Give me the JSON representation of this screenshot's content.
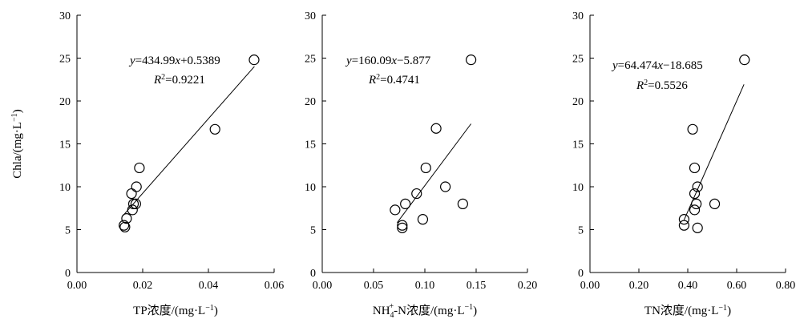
{
  "chart_data": [
    {
      "type": "scatter",
      "xlabel": "TP浓度/(mg·L⁻¹)",
      "ylabel": "Chla/(mg·L⁻¹)",
      "xlim": [
        0,
        0.06
      ],
      "ylim": [
        0,
        30
      ],
      "xticks": [
        "0.00",
        "0.02",
        "0.04",
        "0.06"
      ],
      "yticks": [
        "0",
        "5",
        "10",
        "15",
        "20",
        "25",
        "30"
      ],
      "points": [
        {
          "x": 0.0143,
          "y": 5.5
        },
        {
          "x": 0.0146,
          "y": 5.3
        },
        {
          "x": 0.0151,
          "y": 6.3
        },
        {
          "x": 0.0169,
          "y": 7.3
        },
        {
          "x": 0.0172,
          "y": 8.0
        },
        {
          "x": 0.0179,
          "y": 8.0
        },
        {
          "x": 0.0166,
          "y": 9.2
        },
        {
          "x": 0.0181,
          "y": 10.0
        },
        {
          "x": 0.019,
          "y": 12.2
        },
        {
          "x": 0.042,
          "y": 16.7
        },
        {
          "x": 0.0539,
          "y": 24.8
        }
      ],
      "fit": {
        "slope": 434.99,
        "intercept": 0.5389,
        "x_range": [
          0.014,
          0.054
        ]
      },
      "equation": "y=434.99x+0.5389",
      "r2": "R2=0.9221"
    },
    {
      "type": "scatter",
      "xlabel": "NH4+-N浓度/(mg·L⁻¹)",
      "ylabel": "",
      "xlim": [
        0,
        0.2
      ],
      "ylim": [
        0,
        30
      ],
      "xticks": [
        "0.00",
        "0.05",
        "0.10",
        "0.15",
        "0.20"
      ],
      "yticks": [
        "0",
        "5",
        "10",
        "15",
        "20",
        "25",
        "30"
      ],
      "points": [
        {
          "x": 0.071,
          "y": 7.3
        },
        {
          "x": 0.078,
          "y": 5.5
        },
        {
          "x": 0.078,
          "y": 5.2
        },
        {
          "x": 0.081,
          "y": 8.0
        },
        {
          "x": 0.092,
          "y": 9.2
        },
        {
          "x": 0.098,
          "y": 6.2
        },
        {
          "x": 0.101,
          "y": 12.2
        },
        {
          "x": 0.111,
          "y": 16.8
        },
        {
          "x": 0.12,
          "y": 10.0
        },
        {
          "x": 0.137,
          "y": 8.0
        },
        {
          "x": 0.145,
          "y": 24.8
        }
      ],
      "fit": {
        "slope": 160.09,
        "intercept": -5.877,
        "x_range": [
          0.073,
          0.145
        ]
      },
      "equation": "y=160.09x−5.877",
      "r2": "R2=0.4741"
    },
    {
      "type": "scatter",
      "xlabel": "TN浓度/(mg·L⁻¹)",
      "ylabel": "",
      "xlim": [
        0,
        0.8
      ],
      "ylim": [
        0,
        30
      ],
      "xticks": [
        "0.00",
        "0.20",
        "0.40",
        "0.60",
        "0.80"
      ],
      "yticks": [
        "0",
        "5",
        "10",
        "15",
        "20",
        "25",
        "30"
      ],
      "points": [
        {
          "x": 0.385,
          "y": 6.2
        },
        {
          "x": 0.385,
          "y": 5.5
        },
        {
          "x": 0.42,
          "y": 16.7
        },
        {
          "x": 0.428,
          "y": 12.2
        },
        {
          "x": 0.428,
          "y": 9.2
        },
        {
          "x": 0.428,
          "y": 7.3
        },
        {
          "x": 0.435,
          "y": 8.0
        },
        {
          "x": 0.44,
          "y": 10.0
        },
        {
          "x": 0.44,
          "y": 5.2
        },
        {
          "x": 0.51,
          "y": 8.0
        },
        {
          "x": 0.632,
          "y": 24.8
        }
      ],
      "fit": {
        "slope": 64.474,
        "intercept": -18.685,
        "x_range": [
          0.385,
          0.63
        ]
      },
      "equation": "y=64.474x−18.685",
      "r2": "R2=0.5526"
    }
  ]
}
